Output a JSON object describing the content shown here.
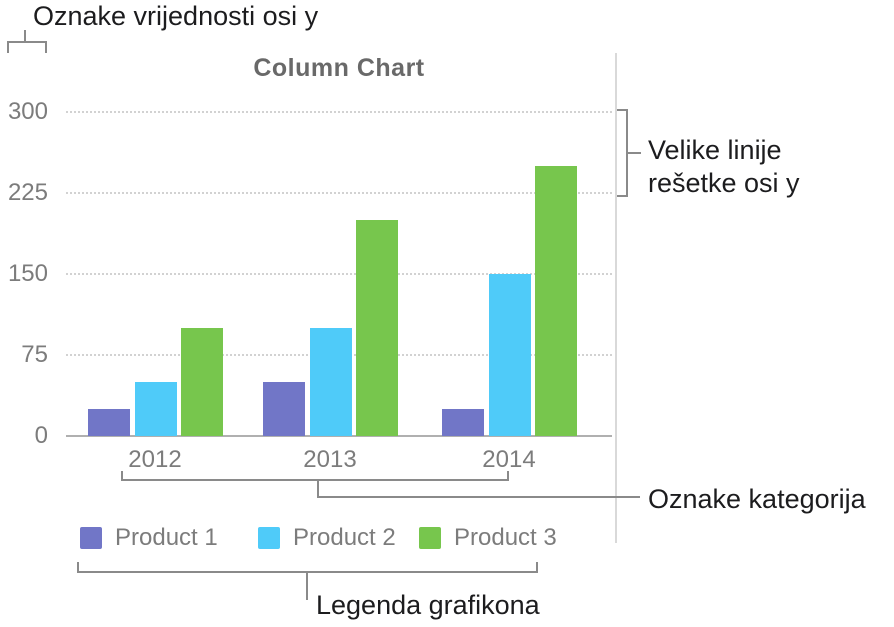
{
  "annotations": {
    "y_value_labels": "Oznake vrijednosti osi y",
    "y_gridlines_line1": "Velike linije",
    "y_gridlines_line2": "rešetke osi y",
    "category_labels": "Oznake kategorija",
    "legend": "Legenda grafikona"
  },
  "chart_data": {
    "type": "bar",
    "title": "Column Chart",
    "categories": [
      "2012",
      "2013",
      "2014"
    ],
    "series": [
      {
        "name": "Product 1",
        "color": "#7176c7",
        "values": [
          25,
          50,
          25
        ]
      },
      {
        "name": "Product 2",
        "color": "#4fcbf9",
        "values": [
          50,
          100,
          150
        ]
      },
      {
        "name": "Product 3",
        "color": "#77c64d",
        "values": [
          100,
          200,
          250
        ]
      }
    ],
    "y_ticks": [
      0,
      75,
      150,
      225,
      300
    ],
    "ylim": [
      0,
      300
    ],
    "grid": "dotted horizontal major gridlines at y ticks, solid baseline at 0",
    "legend_position": "bottom",
    "colors": {
      "axis_text": "#7c7c7c",
      "title_text": "#696969",
      "gridline": "#d2d2d2",
      "baseline": "#b0b0b0",
      "callout_bracket": "#8a8a8a",
      "annotation_text": "#1c1c1e",
      "chart_edge_line": "#d9d9d9"
    }
  }
}
